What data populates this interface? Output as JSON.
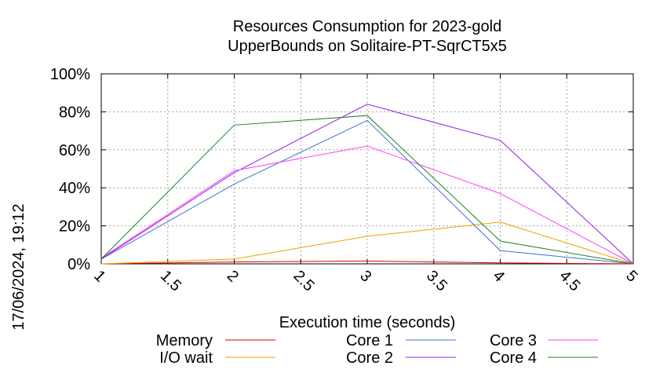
{
  "chart_data": {
    "type": "line",
    "title": "Resources Consumption for 2023-gold",
    "subtitle": "UpperBounds on Solitaire-PT-SqrCT5x5",
    "xlabel": "Execution time (seconds)",
    "ylabel": "",
    "timestamp": "17/06/2024, 19:12",
    "xlim": [
      1,
      5
    ],
    "ylim": [
      0,
      100
    ],
    "x_ticks": [
      "1",
      "1.5",
      "2",
      "2.5",
      "3",
      "3.5",
      "4",
      "4.5",
      "5"
    ],
    "y_ticks": [
      "0%",
      "20%",
      "40%",
      "60%",
      "80%",
      "100%"
    ],
    "grid": true,
    "legend_position": "bottom",
    "x": [
      1,
      2,
      3,
      4,
      5
    ],
    "series": [
      {
        "name": "Memory",
        "color": "#e00000",
        "values": [
          0,
          1,
          1.5,
          0.5,
          0
        ]
      },
      {
        "name": "I/O wait",
        "color": "#f0a000",
        "values": [
          0,
          2.5,
          14.5,
          22,
          0
        ]
      },
      {
        "name": "Core 1",
        "color": "#4070d0",
        "values": [
          2.5,
          42,
          75.5,
          7,
          0
        ]
      },
      {
        "name": "Core 2",
        "color": "#9020e0",
        "values": [
          2.5,
          48,
          84,
          65,
          0
        ]
      },
      {
        "name": "Core 3",
        "color": "#ff40ff",
        "values": [
          3,
          49,
          62,
          37,
          0
        ]
      },
      {
        "name": "Core 4",
        "color": "#208020",
        "values": [
          2.5,
          73,
          78,
          12,
          0
        ]
      }
    ]
  }
}
